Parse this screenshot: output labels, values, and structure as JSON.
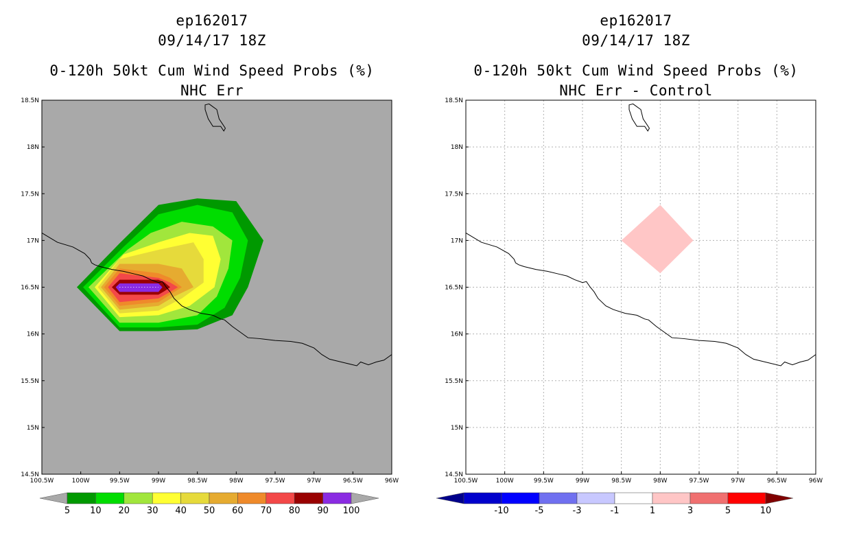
{
  "chart_data": [
    {
      "type": "heatmap",
      "panel": "left",
      "title_lines": [
        "ep162017",
        "09/14/17 18Z",
        "0-120h 50kt Cum Wind Speed Probs (%)",
        "NHC Err"
      ],
      "x_ticks": [
        "100.5W",
        "100W",
        "99.5W",
        "99W",
        "98.5W",
        "98W",
        "97.5W",
        "97W",
        "96.5W",
        "96W"
      ],
      "y_ticks": [
        "18.5N",
        "18N",
        "17.5N",
        "17N",
        "16.5N",
        "16N",
        "15.5N",
        "15N",
        "14.5N"
      ],
      "xlim": [
        -100.5,
        -96.0
      ],
      "ylim": [
        14.5,
        18.5
      ],
      "grid": false,
      "background": "#a9a9a9",
      "contour_levels": [
        {
          "value": 5,
          "color": "#009900"
        },
        {
          "value": 10,
          "color": "#00dd00"
        },
        {
          "value": 20,
          "color": "#a1e63c"
        },
        {
          "value": 30,
          "color": "#ffff33"
        },
        {
          "value": 40,
          "color": "#e6da3b"
        },
        {
          "value": 50,
          "color": "#e6ab30"
        },
        {
          "value": 60,
          "color": "#ef8a2a"
        },
        {
          "value": 70,
          "color": "#f34848"
        },
        {
          "value": 80,
          "color": "#990000"
        },
        {
          "value": 90,
          "color": "#8a2be2"
        }
      ],
      "colorbar": {
        "labels": [
          "5",
          "10",
          "20",
          "30",
          "40",
          "50",
          "60",
          "70",
          "80",
          "90",
          "100"
        ],
        "colors": [
          "#009900",
          "#00dd00",
          "#a1e63c",
          "#ffff33",
          "#e6da3b",
          "#e6ab30",
          "#ef8a2a",
          "#f34848",
          "#990000",
          "#8a2be2"
        ],
        "low_arrow_color": "#a9a9a9",
        "high_arrow_color": "#a9a9a9"
      },
      "max_probability_location": {
        "lon": -99.2,
        "lat": 16.5
      }
    },
    {
      "type": "heatmap",
      "panel": "right",
      "title_lines": [
        "ep162017",
        "09/14/17 18Z",
        "0-120h 50kt Cum Wind Speed Probs (%)",
        "NHC Err - Control"
      ],
      "x_ticks": [
        "100.5W",
        "100W",
        "99.5W",
        "99W",
        "98.5W",
        "98W",
        "97.5W",
        "97W",
        "96.5W",
        "96W"
      ],
      "y_ticks": [
        "18.5N",
        "18N",
        "17.5N",
        "17N",
        "16.5N",
        "16N",
        "15.5N",
        "15N",
        "14.5N"
      ],
      "xlim": [
        -100.5,
        -96.0
      ],
      "ylim": [
        14.5,
        18.5
      ],
      "grid": true,
      "background": "#ffffff",
      "difference_features": [
        {
          "range": "1 to 3",
          "color": "#ffc6c6",
          "center": {
            "lon": -98.0,
            "lat": 17.0
          },
          "half_width_deg": 0.5,
          "half_height_deg": 0.35
        }
      ],
      "colorbar": {
        "labels": [
          "-10",
          "-5",
          "-3",
          "-1",
          "1",
          "3",
          "5",
          "10"
        ],
        "colors": [
          "#0000cc",
          "#0000ff",
          "#7070f0",
          "#c8c8ff",
          "#ffffff",
          "#ffc6c6",
          "#f07070",
          "#ff0000"
        ],
        "low_arrow_color": "#00008b",
        "high_arrow_color": "#800000"
      }
    }
  ]
}
